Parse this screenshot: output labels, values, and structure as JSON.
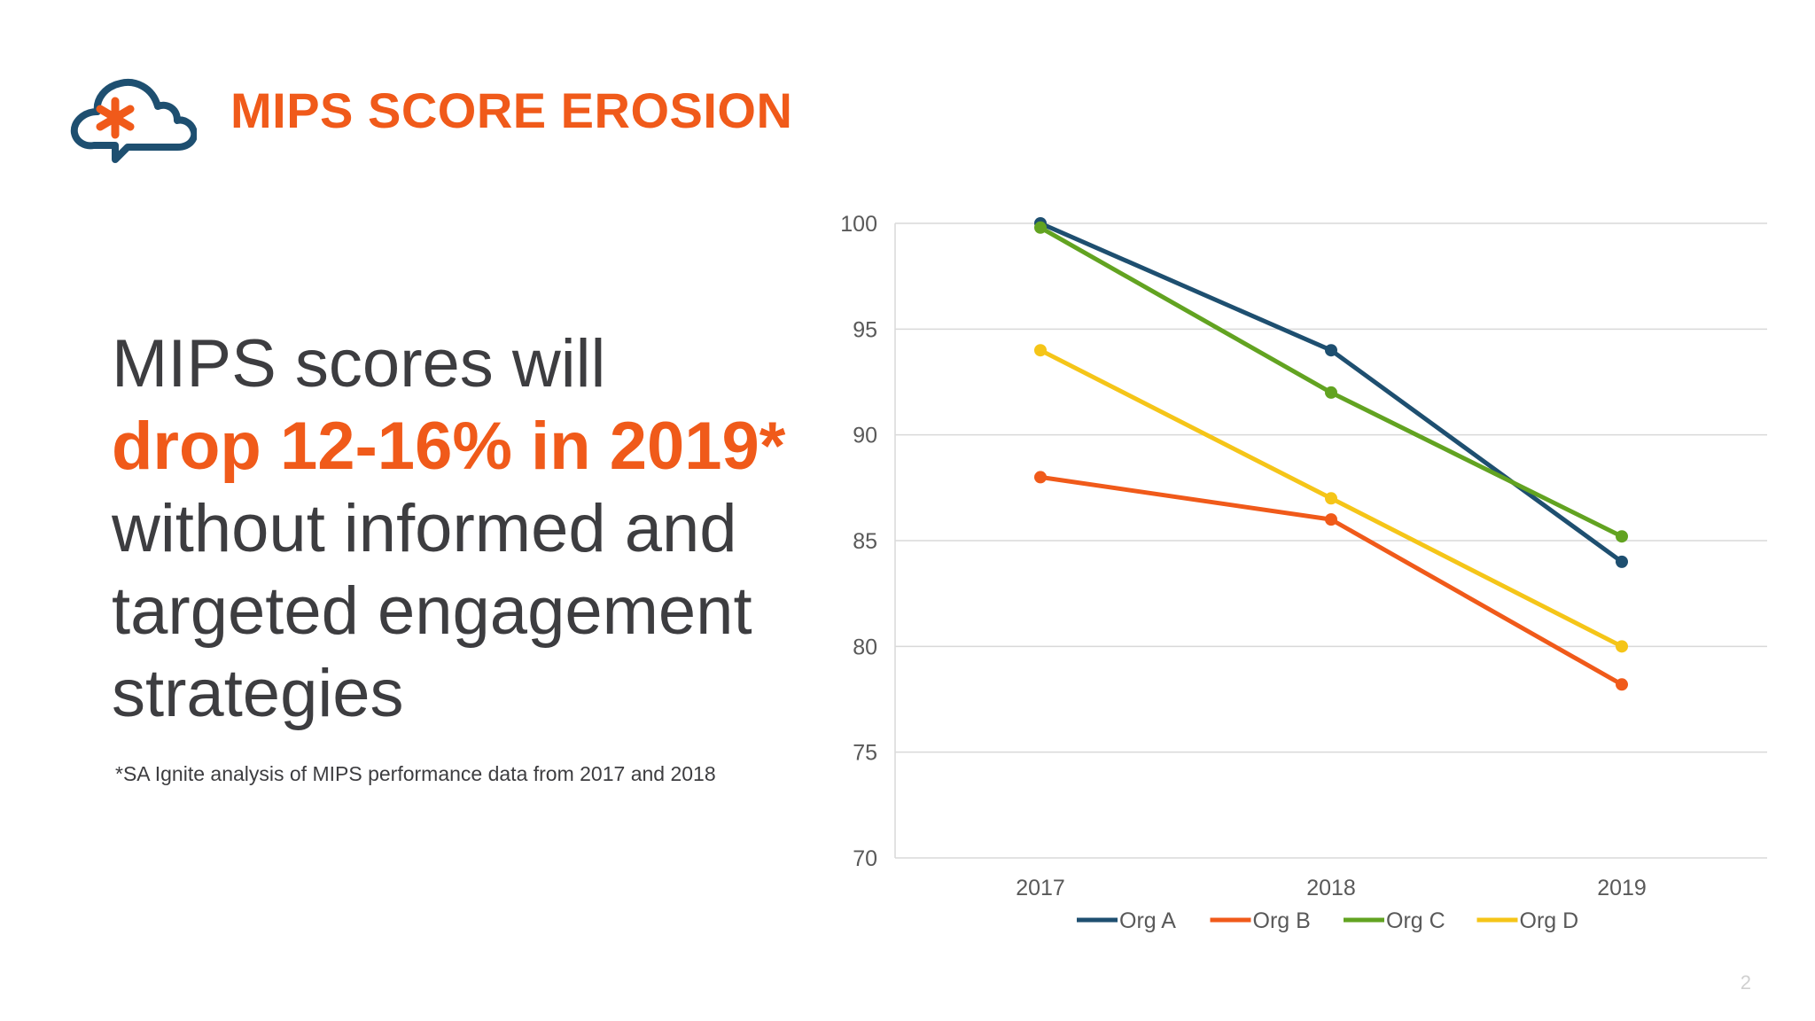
{
  "slide": {
    "title": "MIPS SCORE EROSION",
    "headline_line1": "MIPS scores will",
    "headline_emphasis": "drop 12-16% in 2019*",
    "headline_rest": "without informed and targeted engagement strategies",
    "footnote": "*SA Ignite analysis of MIPS performance data from 2017 and 2018",
    "page_number": "2"
  },
  "logo": {
    "icon": "cloud-asterisk-icon",
    "cloud_color": "#1e4f70",
    "asterisk_color": "#f05a1a"
  },
  "colors": {
    "accent": "#f05a1a",
    "text": "#3d3d40"
  },
  "chart_data": {
    "type": "line",
    "title": "",
    "xlabel": "",
    "ylabel": "",
    "categories": [
      "2017",
      "2018",
      "2019"
    ],
    "ylim": [
      70,
      100
    ],
    "yticks": [
      70,
      75,
      80,
      85,
      90,
      95,
      100
    ],
    "grid": true,
    "legend_position": "bottom",
    "series": [
      {
        "name": "Org A",
        "color": "#1e4f70",
        "values": [
          100,
          94,
          84
        ]
      },
      {
        "name": "Org B",
        "color": "#f05a1a",
        "values": [
          88,
          86,
          78.2
        ]
      },
      {
        "name": "Org C",
        "color": "#62a321",
        "values": [
          99.8,
          92,
          85.2
        ]
      },
      {
        "name": "Org D",
        "color": "#f5c518",
        "values": [
          94,
          87,
          80
        ]
      }
    ]
  }
}
